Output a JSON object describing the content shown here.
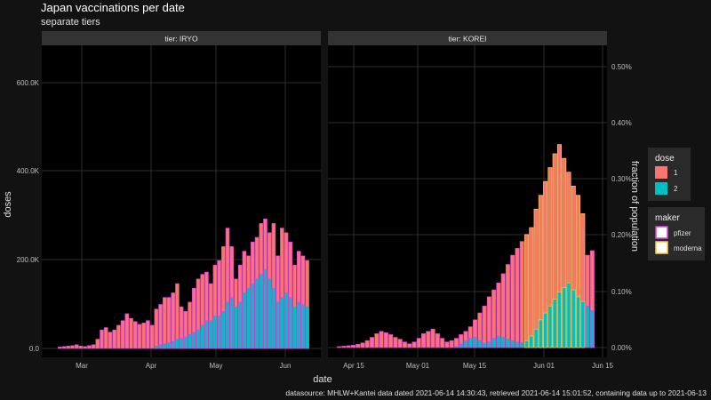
{
  "chart_data": {
    "type": "bar",
    "title": "Japan vaccinations per date",
    "subtitle": "separate tiers",
    "xlabel": "date",
    "ylabel": "doses",
    "ylabel_right": "fraction of population",
    "caption": "datasource: MHLW+Kantei data dated 2021-06-14 14:30:43, retrieved 2021-06-14 15:01:52, containing data up to 2021-06-13",
    "colors": {
      "dose1": "#f8766d",
      "dose2": "#00bfc4",
      "pfizer": "#e040e0",
      "moderna": "#ffc94a"
    },
    "legend_dose": {
      "title": "dose",
      "items": [
        "1",
        "2"
      ]
    },
    "legend_maker": {
      "title": "maker",
      "items": [
        "pfizer",
        "moderna"
      ]
    },
    "panels": [
      {
        "strip": "tier: IRYO",
        "x_ticks": [
          "Mar",
          "Apr",
          "May",
          "Jun"
        ],
        "y_ticks": [
          "0.0",
          "200.0K",
          "400.0K",
          "600.0K"
        ],
        "ylim": [
          0,
          680000
        ],
        "series": [
          {
            "name": "1",
            "values": [
              3000,
              4000,
              5000,
              6000,
              8000,
              5000,
              4000,
              6000,
              8000,
              20000,
              40000,
              45000,
              35000,
              40000,
              50000,
              60000,
              75000,
              65000,
              58000,
              52000,
              55000,
              60000,
              50000,
              85000,
              95000,
              110000,
              110000,
              120000,
              140000,
              90000,
              80000,
              100000,
              130000,
              150000,
              160000,
              165000,
              140000,
              180000,
              190000,
              220000,
              260000,
              220000,
              150000,
              180000,
              210000,
              200000,
              230000,
              240000,
              270000,
              280000,
              250000,
              270000,
              200000,
              260000,
              250000,
              230000,
              180000,
              210000,
              200000,
              190000
            ]
          },
          {
            "name": "2",
            "values": [
              0,
              0,
              0,
              0,
              0,
              0,
              0,
              0,
              0,
              0,
              0,
              0,
              0,
              0,
              0,
              0,
              0,
              0,
              0,
              0,
              0,
              0,
              0,
              5000,
              8000,
              10000,
              12000,
              15000,
              20000,
              22000,
              25000,
              30000,
              35000,
              40000,
              50000,
              60000,
              60000,
              70000,
              70000,
              80000,
              100000,
              110000,
              90000,
              100000,
              120000,
              130000,
              140000,
              150000,
              160000,
              170000,
              150000,
              130000,
              100000,
              110000,
              120000,
              110000,
              90000,
              100000,
              95000,
              90000
            ]
          }
        ]
      },
      {
        "strip": "tier: KOREI",
        "x_ticks": [
          "Apr 15",
          "May 01",
          "May 15",
          "Jun 01",
          "Jun 15"
        ],
        "y_ticks": [
          "0.00%",
          "0.10%",
          "0.20%",
          "0.30%",
          "0.40%",
          "0.50%"
        ],
        "ylim": [
          0,
          680000
        ],
        "series": [
          {
            "name": "1",
            "values": [
              2000,
              3000,
              4000,
              5000,
              7000,
              10000,
              15000,
              22000,
              30000,
              35000,
              32000,
              28000,
              22000,
              18000,
              12000,
              8000,
              12000,
              20000,
              30000,
              35000,
              40000,
              30000,
              20000,
              12000,
              15000,
              20000,
              28000,
              35000,
              45000,
              60000,
              75000,
              90000,
              110000,
              125000,
              140000,
              160000,
              180000,
              200000,
              215000,
              230000,
              245000,
              260000,
              300000,
              330000,
              360000,
              390000,
              420000,
              440000,
              410000,
              380000,
              350000,
              330000,
              290000,
              200000,
              210000
            ]
          },
          {
            "name": "2",
            "values": [
              0,
              0,
              0,
              0,
              0,
              0,
              0,
              0,
              0,
              0,
              0,
              0,
              0,
              0,
              0,
              0,
              0,
              0,
              0,
              0,
              0,
              0,
              0,
              0,
              0,
              2000,
              8000,
              15000,
              20000,
              22000,
              15000,
              10000,
              12000,
              20000,
              25000,
              22000,
              18000,
              15000,
              12000,
              10000,
              15000,
              25000,
              40000,
              60000,
              75000,
              90000,
              105000,
              120000,
              130000,
              140000,
              125000,
              110000,
              100000,
              90000,
              80000
            ]
          }
        ]
      }
    ]
  }
}
